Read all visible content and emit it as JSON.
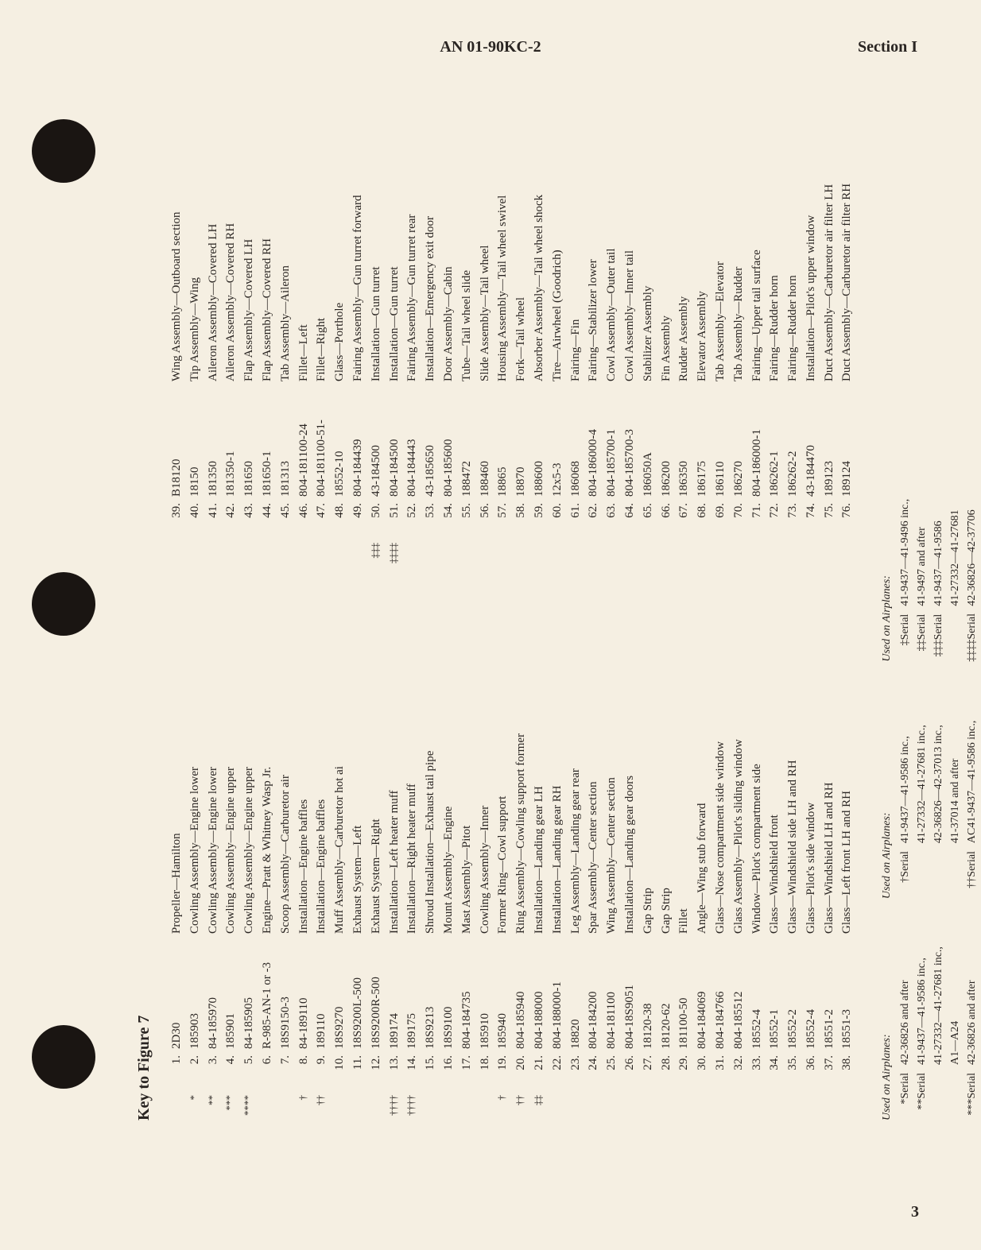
{
  "header": {
    "manual": "AN 01-90KC-2",
    "section": "Section I"
  },
  "title": "Key to Figure 7",
  "page_number": "3",
  "columns": [
    [
      {
        "n": "1.",
        "m": "",
        "p": "2D30",
        "d": "Propeller—Hamilton"
      },
      {
        "n": "2.",
        "m": "*",
        "p": "185903",
        "d": "Cowling Assembly—Engine lower"
      },
      {
        "n": "3.",
        "m": "**",
        "p": "84-185970",
        "d": "Cowling Assembly—Engine lower"
      },
      {
        "n": "4.",
        "m": "***",
        "p": "185901",
        "d": "Cowling Assembly—Engine upper"
      },
      {
        "n": "5.",
        "m": "****",
        "p": "84-185905",
        "d": "Cowling Assembly—Engine upper"
      },
      {
        "n": "6.",
        "m": "",
        "p": "R-985-AN-1 or -3",
        "d": "Engine—Pratt & Whitney Wasp Jr."
      },
      {
        "n": "7.",
        "m": "",
        "p": "18S9150-3",
        "d": "Scoop Assembly—Carburetor air"
      },
      {
        "n": "8.",
        "m": "†",
        "p": "84-189110",
        "d": "Installation—Engine baffles"
      },
      {
        "n": "9.",
        "m": "††",
        "p": "189110",
        "d": "Installation—Engine baffles"
      },
      {
        "n": "10.",
        "m": "",
        "p": "18S9270",
        "d": "Muff Assembly—Carburetor hot ai"
      },
      {
        "n": "11.",
        "m": "",
        "p": "18S9200L-500",
        "d": "Exhaust System—Left"
      },
      {
        "n": "12.",
        "m": "",
        "p": "18S9200R-500",
        "d": "Exhaust System—Right"
      },
      {
        "n": "13.",
        "m": "††††",
        "p": "189174",
        "d": "Installation—Left heater muff"
      },
      {
        "n": "14.",
        "m": "††††",
        "p": "189175",
        "d": "Installation—Right heater muff"
      },
      {
        "n": "15.",
        "m": "",
        "p": "18S9213",
        "d": "Shroud Installation—Exhaust tail pipe"
      },
      {
        "n": "16.",
        "m": "",
        "p": "18S9100",
        "d": "Mount Assembly—Engine"
      },
      {
        "n": "17.",
        "m": "",
        "p": "804-184735",
        "d": "Mast Assembly—Pitot"
      },
      {
        "n": "18.",
        "m": "",
        "p": "185910",
        "d": "Cowling Assembly—Inner"
      },
      {
        "n": "19.",
        "m": "†",
        "p": "185940",
        "d": "Former Ring—Cowl support"
      },
      {
        "n": "20.",
        "m": "††",
        "p": "804-185940",
        "d": "Ring Assembly—Cowling support former"
      },
      {
        "n": "21.",
        "m": "‡‡",
        "p": "804-188000",
        "d": "Installation—Landing gear LH"
      },
      {
        "n": "22.",
        "m": "",
        "p": "804-188000-1",
        "d": "Installation—Landing gear RH"
      },
      {
        "n": "23.",
        "m": "",
        "p": "18820",
        "d": "Leg Assembly—Landing gear rear"
      },
      {
        "n": "24.",
        "m": "",
        "p": "804-184200",
        "d": "Spar Assembly—Center section"
      },
      {
        "n": "25.",
        "m": "",
        "p": "804-181100",
        "d": "Wing Assembly—Center section"
      },
      {
        "n": "26.",
        "m": "",
        "p": "804-18S9051",
        "d": "Installation—Landing gear doors"
      },
      {
        "n": "27.",
        "m": "",
        "p": "18120-38",
        "d": "Gap Strip"
      },
      {
        "n": "28.",
        "m": "",
        "p": "18120-62",
        "d": "Gap Strip"
      },
      {
        "n": "29.",
        "m": "",
        "p": "181100-50",
        "d": "Fillet"
      },
      {
        "n": "30.",
        "m": "",
        "p": "804-184069",
        "d": "Angle—Wing stub forward"
      },
      {
        "n": "31.",
        "m": "",
        "p": "804-184766",
        "d": "Glass—Nose compartment side window"
      },
      {
        "n": "32.",
        "m": "",
        "p": "804-185512",
        "d": "Glass Assembly—Pilot's sliding window"
      },
      {
        "n": "33.",
        "m": "",
        "p": "18552-4",
        "d": "Window—Pilot's compartment side"
      },
      {
        "n": "34.",
        "m": "",
        "p": "18552-1",
        "d": "Glass—Windshield front"
      },
      {
        "n": "35.",
        "m": "",
        "p": "18552-2",
        "d": "Glass—Windshield side LH and RH"
      },
      {
        "n": "36.",
        "m": "",
        "p": "18552-4",
        "d": "Glass—Pilot's side window"
      },
      {
        "n": "37.",
        "m": "",
        "p": "18551-2",
        "d": "Glass—Windshield LH and RH"
      },
      {
        "n": "38.",
        "m": "",
        "p": "18551-3",
        "d": "Glass—Left front LH and RH"
      }
    ],
    [
      {
        "n": "39.",
        "m": "",
        "p": "B18120",
        "d": "Wing Assembly—Outboard section"
      },
      {
        "n": "40.",
        "m": "",
        "p": "18150",
        "d": "Tip Assembly—Wing"
      },
      {
        "n": "41.",
        "m": "",
        "p": "181350",
        "d": "Aileron Assembly—Covered LH"
      },
      {
        "n": "42.",
        "m": "",
        "p": "181350-1",
        "d": "Aileron Assembly—Covered RH"
      },
      {
        "n": "43.",
        "m": "",
        "p": "181650",
        "d": "Flap Assembly—Covered LH"
      },
      {
        "n": "44.",
        "m": "",
        "p": "181650-1",
        "d": "Flap Assembly—Covered RH"
      },
      {
        "n": "45.",
        "m": "",
        "p": "181313",
        "d": "Tab Assembly—Aileron"
      },
      {
        "n": "46.",
        "m": "",
        "p": "804-181100-24",
        "d": "Fillet—Left"
      },
      {
        "n": "47.",
        "m": "",
        "p": "804-181100-51-",
        "d": "Fillet—Right"
      },
      {
        "n": "48.",
        "m": "",
        "p": "18552-10",
        "d": "Glass—Porthole"
      },
      {
        "n": "49.",
        "m": "",
        "p": "804-184439",
        "d": "Fairing Assembly—Gun turret forward"
      },
      {
        "n": "50.",
        "m": "‡‡‡",
        "p": "43-184500",
        "d": "Installation—Gun turret"
      },
      {
        "n": "51.",
        "m": "‡‡‡‡",
        "p": "804-184500",
        "d": "Installation—Gun turret"
      },
      {
        "n": "52.",
        "m": "",
        "p": "804-184443",
        "d": "Fairing Assembly—Gun turret rear"
      },
      {
        "n": "53.",
        "m": "",
        "p": "43-185650",
        "d": "Installation—Emergency exit door"
      },
      {
        "n": "54.",
        "m": "",
        "p": "804-185600",
        "d": "Door Assembly—Cabin"
      },
      {
        "n": "55.",
        "m": "",
        "p": "188472",
        "d": "Tube—Tail wheel slide"
      },
      {
        "n": "56.",
        "m": "",
        "p": "188460",
        "d": "Slide Assembly—Tail wheel"
      },
      {
        "n": "57.",
        "m": "",
        "p": "18865",
        "d": "Housing Assembly—Tail wheel swivel"
      },
      {
        "n": "58.",
        "m": "",
        "p": "18870",
        "d": "Fork—Tail wheel"
      },
      {
        "n": "59.",
        "m": "",
        "p": "188600",
        "d": "Absorber Assembly—Tail wheel shock"
      },
      {
        "n": "60.",
        "m": "",
        "p": "12x5-3",
        "d": "Tire—Airwheel (Goodrich)"
      },
      {
        "n": "61.",
        "m": "",
        "p": "186068",
        "d": "Fairing—Fin"
      },
      {
        "n": "62.",
        "m": "",
        "p": "804-186000-4",
        "d": "Fairing—Stabilizer lower"
      },
      {
        "n": "63.",
        "m": "",
        "p": "804-185700-1",
        "d": "Cowl Assembly—Outer tail"
      },
      {
        "n": "64.",
        "m": "",
        "p": "804-185700-3",
        "d": "Cowl Assembly—Inner tail"
      },
      {
        "n": "65.",
        "m": "",
        "p": "186050A",
        "d": "Stabilizer Assembly"
      },
      {
        "n": "66.",
        "m": "",
        "p": "186200",
        "d": "Fin Assembly"
      },
      {
        "n": "67.",
        "m": "",
        "p": "186350",
        "d": "Rudder Assembly"
      },
      {
        "n": "68.",
        "m": "",
        "p": "186175",
        "d": "Elevator Assembly"
      },
      {
        "n": "69.",
        "m": "",
        "p": "186110",
        "d": "Tab Assembly—Elevator"
      },
      {
        "n": "70.",
        "m": "",
        "p": "186270",
        "d": "Tab Assembly—Rudder"
      },
      {
        "n": "71.",
        "m": "",
        "p": "804-186000-1",
        "d": "Fairing—Upper tail surface"
      },
      {
        "n": "72.",
        "m": "",
        "p": "186262-1",
        "d": "Fairing—Rudder horn"
      },
      {
        "n": "73.",
        "m": "",
        "p": "186262-2",
        "d": "Fairing—Rudder horn"
      },
      {
        "n": "74.",
        "m": "",
        "p": "43-184470",
        "d": "Installation—Pilot's upper window"
      },
      {
        "n": "75.",
        "m": "",
        "p": "189123",
        "d": "Duct Assembly—Carburetor air filter LH"
      },
      {
        "n": "76.",
        "m": "",
        "p": "189124",
        "d": "Duct Assembly—Carburetor air filter RH"
      }
    ]
  ],
  "footnotes": [
    {
      "heading": "Used on Airplanes:",
      "items": [
        {
          "m": "*Serial",
          "t": "42-36826 and after"
        },
        {
          "m": "**Serial",
          "t": "41-9437—41-9586 inc.,"
        },
        {
          "m": "",
          "t": "41-27332—41-27681 inc.,"
        },
        {
          "m": "",
          "t": "A1—A24"
        },
        {
          "m": "***Serial",
          "t": "42-36826 and after"
        },
        {
          "m": "****Serial",
          "t": "41-9437—41-9586 inc.,"
        },
        {
          "m": "",
          "t": "41-27332—41-27681 inc.,"
        },
        {
          "m": "",
          "t": "A1—A24"
        }
      ]
    },
    {
      "heading": "Used on Airplanes:",
      "items": [
        {
          "m": "†Serial",
          "t": "41-9437—41-9586 inc.,"
        },
        {
          "m": "",
          "t": "41-27332—41-27681 inc.,"
        },
        {
          "m": "",
          "t": "42-36826—42-37013 inc.,"
        },
        {
          "m": "",
          "t": "41-37014 and after"
        },
        {
          "m": "††Serial",
          "t": "AC41-9437—41-9586 inc.,"
        },
        {
          "m": "†††Serial",
          "t": "AC41-27337—41-27681 inc.,"
        },
        {
          "m": "",
          "t": "AC42-36826—42-37013 inc.,"
        },
        {
          "m": "††††Serial",
          "t": "42-37014 and after"
        }
      ]
    },
    {
      "heading": "Used on Airplanes:",
      "items": [
        {
          "m": "‡Serial",
          "t": "41-9437—41-9496 inc.,"
        },
        {
          "m": "‡‡Serial",
          "t": "41-9497 and after"
        },
        {
          "m": "‡‡‡Serial",
          "t": "41-9437—41-9586"
        },
        {
          "m": "",
          "t": "41-27332—41-27681"
        },
        {
          "m": "‡‡‡‡Serial",
          "t": "42-36826—42-37706"
        },
        {
          "m": "",
          "t": "39749 and after"
        }
      ]
    }
  ]
}
